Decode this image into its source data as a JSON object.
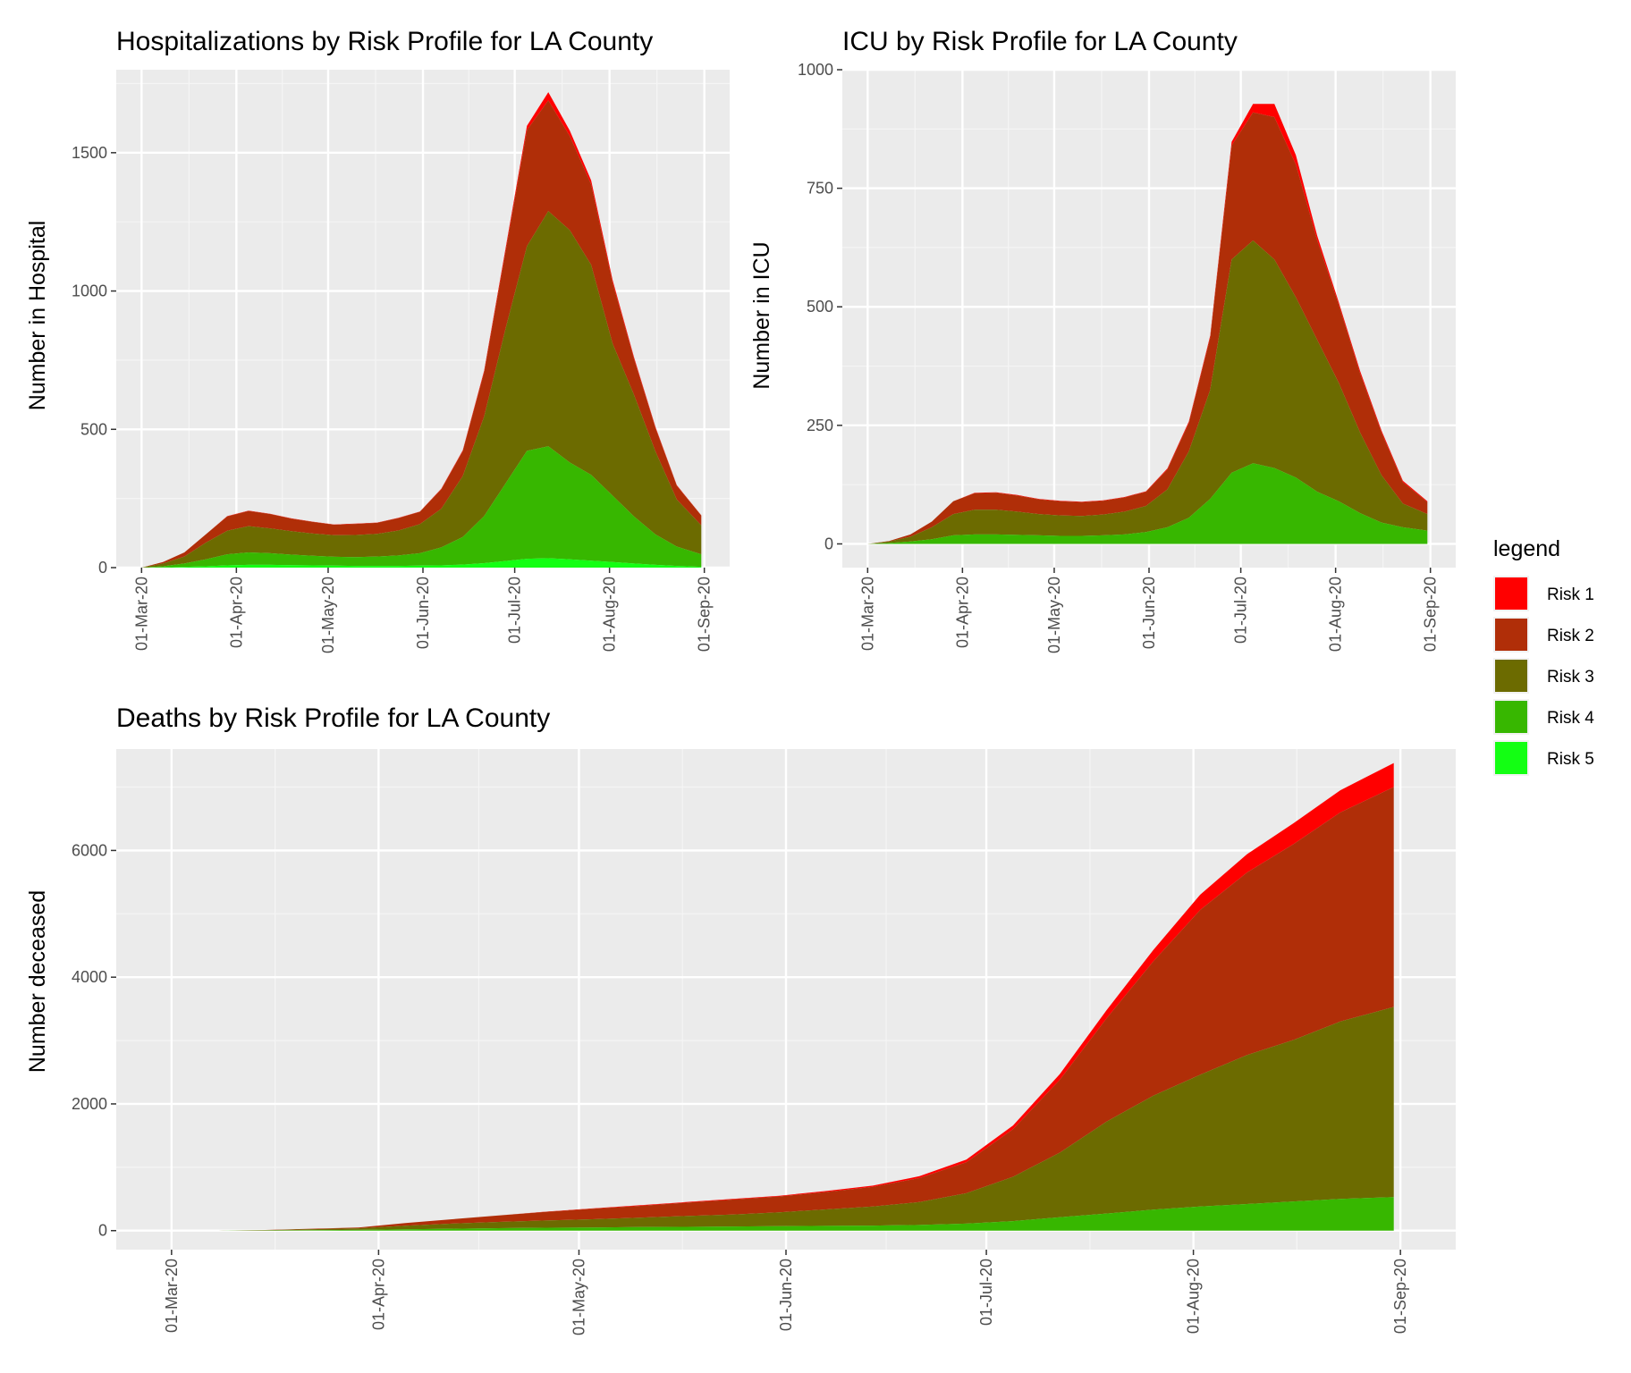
{
  "legend": {
    "title": "legend",
    "items": [
      {
        "label": "Risk 1",
        "color": "#ff0000"
      },
      {
        "label": "Risk 2",
        "color": "#b02e08"
      },
      {
        "label": "Risk 3",
        "color": "#6c6b00"
      },
      {
        "label": "Risk 4",
        "color": "#37b700"
      },
      {
        "label": "Risk 5",
        "color": "#13ff13"
      }
    ]
  },
  "chart_data": [
    {
      "type": "area",
      "stacked": true,
      "title": "Hospitalizations by Risk Profile for LA County",
      "xlabel": "",
      "ylabel": "Number in Hospital",
      "ylim": [
        0,
        1800
      ],
      "yticks": [
        0,
        500,
        1000,
        1500
      ],
      "x_ticks": [
        "01-Mar-20",
        "01-Apr-20",
        "01-May-20",
        "01-Jun-20",
        "01-Jul-20",
        "01-Aug-20",
        "01-Sep-20"
      ],
      "x": [
        "2020-03-01",
        "2020-03-08",
        "2020-03-15",
        "2020-03-22",
        "2020-03-29",
        "2020-04-05",
        "2020-04-12",
        "2020-04-19",
        "2020-04-26",
        "2020-05-03",
        "2020-05-10",
        "2020-05-17",
        "2020-05-24",
        "2020-05-31",
        "2020-06-07",
        "2020-06-14",
        "2020-06-21",
        "2020-06-28",
        "2020-07-05",
        "2020-07-12",
        "2020-07-19",
        "2020-07-26",
        "2020-08-02",
        "2020-08-09",
        "2020-08-16",
        "2020-08-23",
        "2020-08-31"
      ],
      "series": [
        {
          "name": "Risk 5",
          "values": [
            0,
            1,
            3,
            5,
            8,
            10,
            10,
            9,
            8,
            7,
            6,
            6,
            6,
            7,
            8,
            11,
            16,
            24,
            32,
            34,
            30,
            25,
            20,
            15,
            10,
            6,
            3
          ]
        },
        {
          "name": "Risk 4",
          "values": [
            0,
            4,
            12,
            25,
            40,
            45,
            42,
            38,
            35,
            32,
            32,
            34,
            38,
            45,
            65,
            100,
            170,
            280,
            390,
            405,
            350,
            310,
            240,
            170,
            110,
            70,
            45
          ]
        },
        {
          "name": "Risk 3",
          "values": [
            0,
            10,
            25,
            60,
            85,
            95,
            90,
            85,
            80,
            78,
            80,
            82,
            90,
            105,
            140,
            220,
            360,
            560,
            740,
            850,
            840,
            760,
            550,
            440,
            300,
            170,
            105
          ]
        },
        {
          "name": "Risk 2",
          "values": [
            0,
            5,
            15,
            30,
            52,
            55,
            52,
            45,
            42,
            38,
            40,
            40,
            45,
            45,
            70,
            90,
            160,
            280,
            420,
            400,
            340,
            290,
            220,
            130,
            85,
            50,
            35
          ]
        },
        {
          "name": "Risk 1",
          "values": [
            0,
            0,
            0,
            0,
            1,
            1,
            1,
            1,
            1,
            1,
            1,
            1,
            1,
            1,
            2,
            3,
            6,
            10,
            15,
            30,
            20,
            15,
            10,
            6,
            4,
            2,
            1
          ]
        }
      ]
    },
    {
      "type": "area",
      "stacked": true,
      "title": "ICU by Risk Profile for LA County",
      "xlabel": "",
      "ylabel": "Number in ICU",
      "ylim": [
        -50,
        1000
      ],
      "yticks": [
        0,
        250,
        500,
        750,
        1000
      ],
      "x_ticks": [
        "01-Mar-20",
        "01-Apr-20",
        "01-May-20",
        "01-Jun-20",
        "01-Jul-20",
        "01-Aug-20",
        "01-Sep-20"
      ],
      "x": [
        "2020-03-01",
        "2020-03-08",
        "2020-03-15",
        "2020-03-22",
        "2020-03-29",
        "2020-04-05",
        "2020-04-12",
        "2020-04-19",
        "2020-04-26",
        "2020-05-03",
        "2020-05-10",
        "2020-05-17",
        "2020-05-24",
        "2020-05-31",
        "2020-06-07",
        "2020-06-14",
        "2020-06-21",
        "2020-06-28",
        "2020-07-05",
        "2020-07-12",
        "2020-07-19",
        "2020-07-26",
        "2020-08-02",
        "2020-08-09",
        "2020-08-16",
        "2020-08-23",
        "2020-08-31"
      ],
      "series": [
        {
          "name": "Risk 5",
          "values": [
            0,
            0,
            0,
            0,
            0,
            0,
            0,
            0,
            0,
            0,
            0,
            0,
            0,
            0,
            0,
            0,
            0,
            0,
            0,
            0,
            0,
            0,
            0,
            0,
            0,
            0,
            0
          ]
        },
        {
          "name": "Risk 4",
          "values": [
            0,
            2,
            5,
            10,
            18,
            20,
            20,
            19,
            18,
            17,
            17,
            18,
            20,
            25,
            35,
            55,
            95,
            150,
            170,
            160,
            140,
            110,
            90,
            65,
            45,
            35,
            28
          ]
        },
        {
          "name": "Risk 3",
          "values": [
            0,
            3,
            10,
            25,
            45,
            52,
            52,
            49,
            45,
            43,
            42,
            44,
            48,
            55,
            80,
            140,
            230,
            450,
            470,
            440,
            380,
            320,
            250,
            170,
            100,
            50,
            35
          ]
        },
        {
          "name": "Risk 2",
          "values": [
            0,
            1,
            5,
            12,
            27,
            35,
            36,
            34,
            31,
            30,
            29,
            29,
            30,
            30,
            42,
            60,
            110,
            240,
            270,
            300,
            280,
            210,
            165,
            125,
            90,
            45,
            25
          ]
        },
        {
          "name": "Risk 1",
          "values": [
            0,
            0,
            0,
            0,
            0,
            1,
            1,
            1,
            1,
            1,
            1,
            1,
            1,
            1,
            2,
            3,
            4,
            8,
            18,
            28,
            20,
            10,
            5,
            5,
            4,
            3,
            2
          ]
        }
      ]
    },
    {
      "type": "area",
      "stacked": true,
      "title": "Deaths by Risk Profile for LA County",
      "xlabel": "",
      "ylabel": "Number deceased",
      "ylim": [
        -300,
        7600
      ],
      "yticks": [
        0,
        2000,
        4000,
        6000
      ],
      "x_ticks": [
        "01-Mar-20",
        "01-Apr-20",
        "01-May-20",
        "01-Jun-20",
        "01-Jul-20",
        "01-Aug-20",
        "01-Sep-20"
      ],
      "x": [
        "2020-03-01",
        "2020-03-08",
        "2020-03-15",
        "2020-03-22",
        "2020-03-29",
        "2020-04-05",
        "2020-04-12",
        "2020-04-19",
        "2020-04-26",
        "2020-05-03",
        "2020-05-10",
        "2020-05-17",
        "2020-05-24",
        "2020-05-31",
        "2020-06-07",
        "2020-06-14",
        "2020-06-21",
        "2020-06-28",
        "2020-07-05",
        "2020-07-12",
        "2020-07-19",
        "2020-07-26",
        "2020-08-02",
        "2020-08-09",
        "2020-08-16",
        "2020-08-23",
        "2020-08-31"
      ],
      "series": [
        {
          "name": "Risk 5",
          "values": [
            0,
            0,
            0,
            0,
            0,
            0,
            0,
            0,
            0,
            0,
            0,
            0,
            0,
            0,
            0,
            0,
            0,
            0,
            0,
            0,
            0,
            0,
            0,
            0,
            0,
            0,
            0
          ]
        },
        {
          "name": "Risk 4",
          "values": [
            0,
            0,
            3,
            8,
            12,
            22,
            30,
            38,
            45,
            50,
            55,
            60,
            65,
            70,
            75,
            80,
            90,
            110,
            150,
            210,
            270,
            330,
            380,
            420,
            460,
            500,
            530
          ]
        },
        {
          "name": "Risk 3",
          "values": [
            0,
            0,
            5,
            15,
            25,
            55,
            80,
            100,
            115,
            130,
            150,
            170,
            190,
            220,
            260,
            300,
            360,
            480,
            700,
            1020,
            1450,
            1800,
            2080,
            2350,
            2550,
            2800,
            3000
          ]
        },
        {
          "name": "Risk 2",
          "values": [
            0,
            0,
            2,
            7,
            13,
            43,
            70,
            102,
            135,
            165,
            185,
            210,
            235,
            250,
            275,
            310,
            380,
            490,
            750,
            1150,
            1630,
            2120,
            2600,
            2880,
            3090,
            3300,
            3470
          ]
        },
        {
          "name": "Risk 1",
          "values": [
            0,
            0,
            0,
            0,
            0,
            0,
            0,
            0,
            5,
            5,
            10,
            10,
            10,
            10,
            15,
            20,
            30,
            40,
            60,
            90,
            130,
            180,
            240,
            290,
            330,
            350,
            380
          ]
        }
      ]
    }
  ]
}
